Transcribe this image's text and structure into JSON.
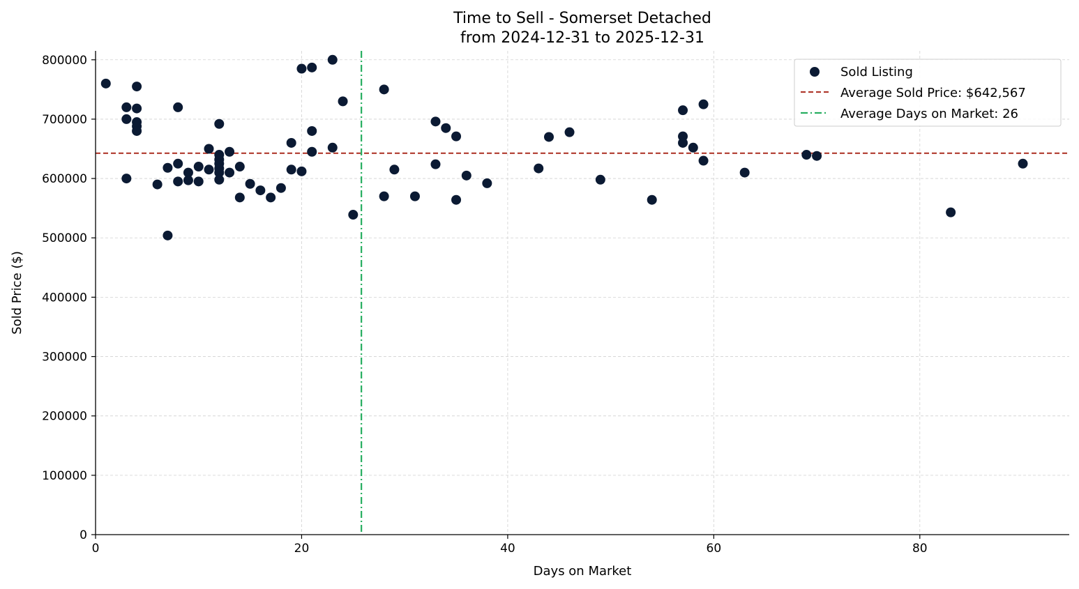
{
  "chart_data": {
    "type": "scatter",
    "title": "Time to Sell - Somerset Detached",
    "subtitle": "from 2024-12-31 to 2025-12-31",
    "xlabel": "Days on Market",
    "ylabel": "Sold Price ($)",
    "xlim": [
      0,
      94.5
    ],
    "ylim": [
      0,
      815000
    ],
    "x_ticks": [
      0,
      20,
      40,
      60,
      80
    ],
    "y_ticks": [
      0,
      100000,
      200000,
      300000,
      400000,
      500000,
      600000,
      700000,
      800000
    ],
    "grid": true,
    "legend_position": "top-right",
    "colors": {
      "points": "#0b1a33",
      "avg_price": "#b03a2e",
      "avg_days": "#27ae60"
    },
    "series": [
      {
        "name": "Sold Listing",
        "points": [
          [
            1,
            760000
          ],
          [
            3,
            720000
          ],
          [
            3,
            700000
          ],
          [
            3,
            600000
          ],
          [
            4,
            755000
          ],
          [
            4,
            718000
          ],
          [
            4,
            695000
          ],
          [
            4,
            688000
          ],
          [
            4,
            680000
          ],
          [
            6,
            590000
          ],
          [
            7,
            618000
          ],
          [
            7,
            504000
          ],
          [
            8,
            720000
          ],
          [
            8,
            625000
          ],
          [
            8,
            595000
          ],
          [
            9,
            610000
          ],
          [
            9,
            597000
          ],
          [
            10,
            620000
          ],
          [
            10,
            595000
          ],
          [
            11,
            650000
          ],
          [
            11,
            615000
          ],
          [
            12,
            692000
          ],
          [
            12,
            640000
          ],
          [
            12,
            632000
          ],
          [
            12,
            625000
          ],
          [
            12,
            617000
          ],
          [
            12,
            610000
          ],
          [
            12,
            598000
          ],
          [
            13,
            645000
          ],
          [
            13,
            610000
          ],
          [
            14,
            620000
          ],
          [
            14,
            568000
          ],
          [
            15,
            591000
          ],
          [
            16,
            580000
          ],
          [
            17,
            568000
          ],
          [
            18,
            584000
          ],
          [
            19,
            660000
          ],
          [
            19,
            615000
          ],
          [
            20,
            785000
          ],
          [
            20,
            612000
          ],
          [
            21,
            787000
          ],
          [
            21,
            680000
          ],
          [
            21,
            645000
          ],
          [
            23,
            800000
          ],
          [
            23,
            652000
          ],
          [
            24,
            730000
          ],
          [
            25,
            539000
          ],
          [
            28,
            750000
          ],
          [
            28,
            570000
          ],
          [
            29,
            615000
          ],
          [
            31,
            570000
          ],
          [
            33,
            696000
          ],
          [
            33,
            624000
          ],
          [
            34,
            685000
          ],
          [
            35,
            671000
          ],
          [
            35,
            564000
          ],
          [
            36,
            605000
          ],
          [
            38,
            592000
          ],
          [
            43,
            617000
          ],
          [
            44,
            670000
          ],
          [
            46,
            678000
          ],
          [
            49,
            598000
          ],
          [
            54,
            564000
          ],
          [
            57,
            715000
          ],
          [
            57,
            671000
          ],
          [
            57,
            660000
          ],
          [
            58,
            652000
          ],
          [
            59,
            725000
          ],
          [
            59,
            630000
          ],
          [
            63,
            610000
          ],
          [
            69,
            640000
          ],
          [
            70,
            638000
          ],
          [
            83,
            543000
          ],
          [
            90,
            625000
          ]
        ]
      }
    ],
    "reference_lines": [
      {
        "name": "Average Sold Price: $642,567",
        "orientation": "horizontal",
        "value": 642567,
        "style": "dashed"
      },
      {
        "name": "Average Days on Market: 26",
        "orientation": "vertical",
        "value": 25.8,
        "style": "dashdot"
      }
    ],
    "legend": [
      "Sold Listing",
      "Average Sold Price: $642,567",
      "Average Days on Market: 26"
    ]
  }
}
